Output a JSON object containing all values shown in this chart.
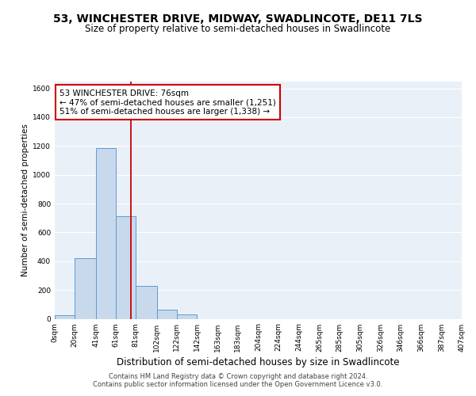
{
  "title": "53, WINCHESTER DRIVE, MIDWAY, SWADLINCOTE, DE11 7LS",
  "subtitle": "Size of property relative to semi-detached houses in Swadlincote",
  "xlabel": "Distribution of semi-detached houses by size in Swadlincote",
  "ylabel": "Number of semi-detached properties",
  "bin_edges": [
    0,
    20,
    41,
    61,
    81,
    102,
    122,
    142,
    163,
    183,
    204,
    224,
    244,
    265,
    285,
    305,
    326,
    346,
    366,
    387,
    407
  ],
  "bin_counts": [
    25,
    420,
    1185,
    715,
    230,
    65,
    30,
    0,
    0,
    0,
    0,
    0,
    0,
    0,
    0,
    0,
    0,
    0,
    0,
    0
  ],
  "bar_color": "#c9d9ec",
  "bar_edge_color": "#5b9bd5",
  "property_value": 76,
  "vline_color": "#cc0000",
  "annotation_line1": "53 WINCHESTER DRIVE: 76sqm",
  "annotation_line2": "← 47% of semi-detached houses are smaller (1,251)",
  "annotation_line3": "51% of semi-detached houses are larger (1,338) →",
  "annotation_box_color": "#ffffff",
  "annotation_box_edge": "#cc0000",
  "ylim": [
    0,
    1650
  ],
  "yticks": [
    0,
    200,
    400,
    600,
    800,
    1000,
    1200,
    1400,
    1600
  ],
  "xtick_labels": [
    "0sqm",
    "20sqm",
    "41sqm",
    "61sqm",
    "81sqm",
    "102sqm",
    "122sqm",
    "142sqm",
    "163sqm",
    "183sqm",
    "204sqm",
    "224sqm",
    "244sqm",
    "265sqm",
    "285sqm",
    "305sqm",
    "326sqm",
    "346sqm",
    "366sqm",
    "387sqm",
    "407sqm"
  ],
  "footer_line1": "Contains HM Land Registry data © Crown copyright and database right 2024.",
  "footer_line2": "Contains public sector information licensed under the Open Government Licence v3.0.",
  "title_fontsize": 10,
  "subtitle_fontsize": 8.5,
  "xlabel_fontsize": 8.5,
  "ylabel_fontsize": 7.5,
  "tick_fontsize": 6.5,
  "annotation_fontsize": 7.5,
  "footer_fontsize": 6,
  "bg_color": "#eaf0f8",
  "fig_bg_color": "#ffffff",
  "grid_color": "#ffffff",
  "grid_linewidth": 0.8
}
